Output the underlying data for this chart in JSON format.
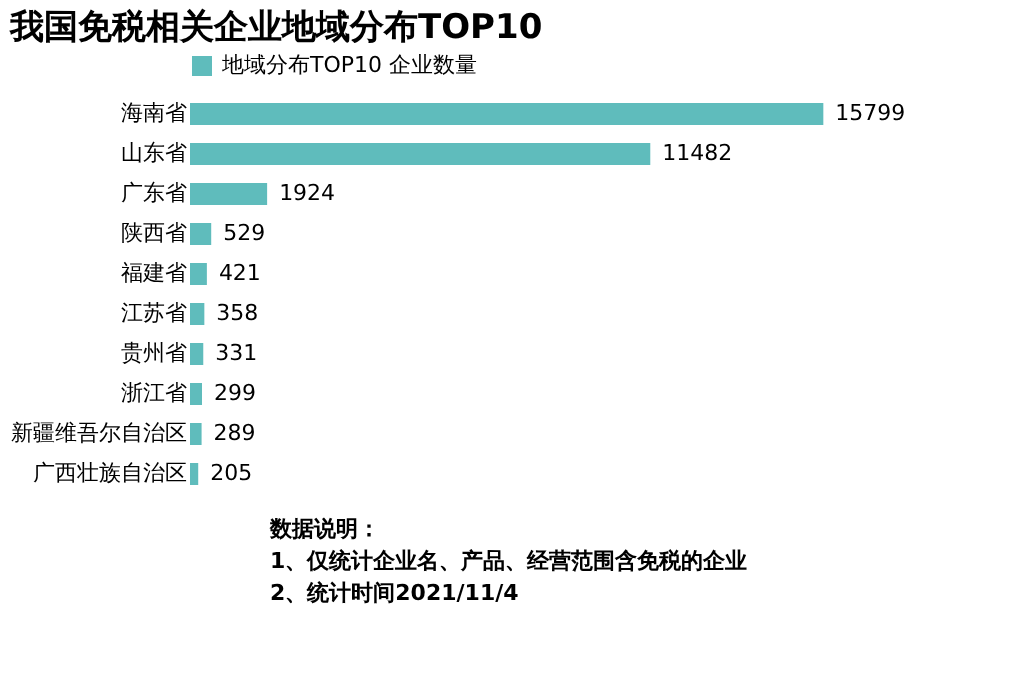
{
  "chart_data": {
    "type": "bar",
    "orientation": "horizontal",
    "title": "我国免税相关企业地域分布TOP10",
    "categories": [
      "海南省",
      "山东省",
      "广东省",
      "陕西省",
      "福建省",
      "江苏省",
      "贵州省",
      "浙江省",
      "新疆维吾尔自治区",
      "广西壮族自治区"
    ],
    "series": [
      {
        "name": "地域分布TOP10 企业数量",
        "color": "#5fbcbc",
        "values": [
          15799,
          11482,
          1924,
          529,
          421,
          358,
          331,
          299,
          289,
          205
        ]
      }
    ],
    "data_labels": true,
    "legend": "top left",
    "grid": false,
    "annotations": [
      "数据说明：",
      "1、仅统计企业名、产品、经营范围含免税的企业",
      "2、统计时间2021/11/4"
    ]
  }
}
